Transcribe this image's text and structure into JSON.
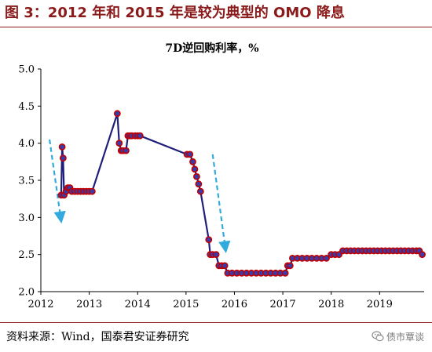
{
  "figure": {
    "title": "图 3：2012 年和 2015 年是较为典型的 OMO 降息",
    "source": "资料来源：Wind，国泰君安证券研究",
    "watermark": "债市覃谈",
    "watermark_icon": "wechat-icon"
  },
  "chart_data": {
    "type": "line",
    "title": "7D逆回购利率，%",
    "xlabel": "",
    "ylabel": "",
    "xlim": [
      2012.0,
      2019.92
    ],
    "ylim": [
      2.0,
      5.0
    ],
    "x_ticks": [
      2012,
      2013,
      2014,
      2015,
      2016,
      2017,
      2018,
      2019
    ],
    "y_ticks": [
      "2.0",
      "2.5",
      "3.0",
      "3.5",
      "4.0",
      "4.5",
      "5.0"
    ],
    "grid": false,
    "legend": "none",
    "colors": {
      "line": "#1f1f7a",
      "marker_fill": "#3a3aa8",
      "marker_edge": "#c00000",
      "arrow": "#33aadd",
      "axis": "#000000"
    },
    "series": [
      {
        "values": [
          [
            2012.42,
            3.3
          ],
          [
            2012.44,
            3.95
          ],
          [
            2012.46,
            3.8
          ],
          [
            2012.48,
            3.3
          ],
          [
            2012.52,
            3.35
          ],
          [
            2012.56,
            3.4
          ],
          [
            2012.6,
            3.4
          ],
          [
            2012.64,
            3.35
          ],
          [
            2012.7,
            3.35
          ],
          [
            2012.76,
            3.35
          ],
          [
            2012.82,
            3.35
          ],
          [
            2012.88,
            3.35
          ],
          [
            2012.94,
            3.35
          ],
          [
            2013.0,
            3.35
          ],
          [
            2013.06,
            3.35
          ],
          [
            2013.58,
            4.4
          ],
          [
            2013.62,
            4.0
          ],
          [
            2013.66,
            3.9
          ],
          [
            2013.7,
            3.9
          ],
          [
            2013.76,
            3.9
          ],
          [
            2013.8,
            4.1
          ],
          [
            2013.84,
            4.1
          ],
          [
            2013.88,
            4.1
          ],
          [
            2013.95,
            4.1
          ],
          [
            2014.0,
            4.1
          ],
          [
            2014.05,
            4.1
          ],
          [
            2015.02,
            3.85
          ],
          [
            2015.08,
            3.85
          ],
          [
            2015.14,
            3.75
          ],
          [
            2015.18,
            3.65
          ],
          [
            2015.22,
            3.55
          ],
          [
            2015.26,
            3.45
          ],
          [
            2015.3,
            3.35
          ],
          [
            2015.47,
            2.7
          ],
          [
            2015.5,
            2.5
          ],
          [
            2015.55,
            2.5
          ],
          [
            2015.62,
            2.5
          ],
          [
            2015.68,
            2.35
          ],
          [
            2015.74,
            2.35
          ],
          [
            2015.8,
            2.35
          ],
          [
            2015.86,
            2.25
          ],
          [
            2015.95,
            2.25
          ],
          [
            2016.05,
            2.25
          ],
          [
            2016.15,
            2.25
          ],
          [
            2016.25,
            2.25
          ],
          [
            2016.35,
            2.25
          ],
          [
            2016.45,
            2.25
          ],
          [
            2016.55,
            2.25
          ],
          [
            2016.65,
            2.25
          ],
          [
            2016.75,
            2.25
          ],
          [
            2016.85,
            2.25
          ],
          [
            2016.95,
            2.25
          ],
          [
            2017.05,
            2.25
          ],
          [
            2017.1,
            2.35
          ],
          [
            2017.15,
            2.35
          ],
          [
            2017.2,
            2.45
          ],
          [
            2017.3,
            2.45
          ],
          [
            2017.4,
            2.45
          ],
          [
            2017.5,
            2.45
          ],
          [
            2017.6,
            2.45
          ],
          [
            2017.7,
            2.45
          ],
          [
            2017.8,
            2.45
          ],
          [
            2017.9,
            2.45
          ],
          [
            2018.0,
            2.5
          ],
          [
            2018.08,
            2.5
          ],
          [
            2018.16,
            2.5
          ],
          [
            2018.24,
            2.55
          ],
          [
            2018.32,
            2.55
          ],
          [
            2018.4,
            2.55
          ],
          [
            2018.48,
            2.55
          ],
          [
            2018.56,
            2.55
          ],
          [
            2018.64,
            2.55
          ],
          [
            2018.72,
            2.55
          ],
          [
            2018.8,
            2.55
          ],
          [
            2018.88,
            2.55
          ],
          [
            2018.96,
            2.55
          ],
          [
            2019.04,
            2.55
          ],
          [
            2019.12,
            2.55
          ],
          [
            2019.2,
            2.55
          ],
          [
            2019.28,
            2.55
          ],
          [
            2019.36,
            2.55
          ],
          [
            2019.44,
            2.55
          ],
          [
            2019.52,
            2.55
          ],
          [
            2019.6,
            2.55
          ],
          [
            2019.68,
            2.55
          ],
          [
            2019.76,
            2.55
          ],
          [
            2019.82,
            2.55
          ],
          [
            2019.88,
            2.5
          ]
        ]
      }
    ],
    "annotations": [
      {
        "type": "arrow",
        "style": "dashed",
        "from": [
          2012.18,
          4.05
        ],
        "to": [
          2012.42,
          2.95
        ]
      },
      {
        "type": "arrow",
        "style": "dashed",
        "from": [
          2015.55,
          3.85
        ],
        "to": [
          2015.82,
          2.55
        ]
      }
    ]
  }
}
